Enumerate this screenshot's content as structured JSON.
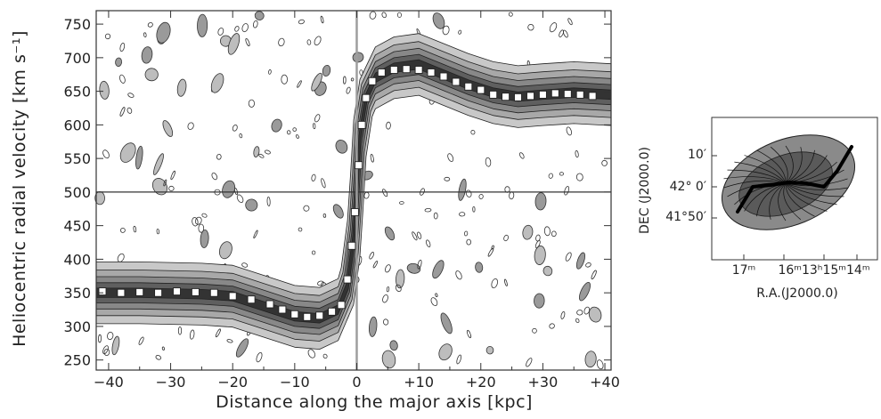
{
  "chart_data": [
    {
      "type": "scatter",
      "title": "",
      "xlabel": "Distance along the major axis [kpc]",
      "ylabel": "Heliocentric radial velocity [km s⁻¹]",
      "xlim": [
        -42,
        41
      ],
      "ylim": [
        235,
        770
      ],
      "x_ticks": [
        -40,
        -30,
        -20,
        -10,
        0,
        10,
        20,
        30,
        40
      ],
      "x_tick_labels": [
        "−40",
        "−30",
        "−20",
        "−10",
        "0",
        "+10",
        "+20",
        "+30",
        "+40"
      ],
      "y_ticks": [
        250,
        300,
        350,
        400,
        450,
        500,
        550,
        600,
        650,
        700,
        750
      ],
      "y_tick_labels": [
        "250",
        "300",
        "350",
        "400",
        "450",
        "500",
        "550",
        "600",
        "650",
        "700",
        "750"
      ],
      "systemic_velocity": 500,
      "center_offset": 0,
      "series": [
        {
          "x": [
            -41,
            -38,
            -35,
            -32,
            -29,
            -26,
            -23,
            -20,
            -17,
            -14,
            -12,
            -10,
            -8,
            -6,
            -4,
            -2.5,
            -1.5,
            -0.8,
            -0.3,
            0.3,
            0.8,
            1.5,
            2.5,
            4,
            6,
            8,
            10,
            12,
            14,
            16,
            18,
            20,
            22,
            24,
            26,
            28,
            30,
            32,
            34,
            36,
            38
          ],
          "y": [
            352,
            350,
            351,
            350,
            352,
            351,
            350,
            345,
            340,
            333,
            325,
            318,
            314,
            316,
            322,
            332,
            370,
            420,
            470,
            540,
            600,
            640,
            665,
            678,
            682,
            683,
            682,
            678,
            672,
            664,
            657,
            652,
            645,
            642,
            641,
            643,
            645,
            647,
            646,
            645,
            643
          ]
        }
      ],
      "contour_ridge": {
        "x": [
          -42,
          -35,
          -25,
          -20,
          -15,
          -10,
          -6,
          -3,
          -1.5,
          -0.5,
          0,
          0.5,
          1.5,
          3,
          6,
          10,
          14,
          18,
          22,
          26,
          30,
          35,
          41
        ],
        "y": [
          350,
          350,
          348,
          345,
          330,
          315,
          312,
          325,
          360,
          430,
          500,
          580,
          640,
          670,
          685,
          690,
          675,
          660,
          648,
          642,
          645,
          648,
          645
        ]
      }
    },
    {
      "type": "heatmap",
      "title": "",
      "xlabel": "R.A.(J2000.0)",
      "ylabel": "DEC (J2000.0)",
      "x_tick_labels": [
        "17ᵐ",
        "16ᵐ13ʰ15ᵐ14ᵐ"
      ],
      "y_tick_labels": [
        "10′",
        "42° 0′",
        "41°50′"
      ]
    }
  ]
}
